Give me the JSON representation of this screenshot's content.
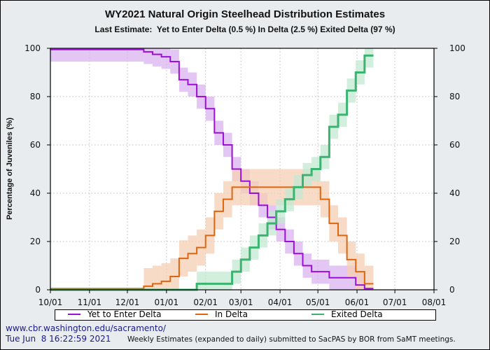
{
  "chart_data": {
    "type": "line",
    "title": "WY2021 Natural Origin Steelhead Distribution Estimates",
    "subtitle": "Last Estimate:  Yet to Enter Delta (0.5 %) In Delta (2.5 %) Exited Delta (97 %)",
    "ylabel": "Percentage of Juveniles (%)",
    "xlabel": "",
    "xlim": [
      "2020-10-01",
      "2021-08-01"
    ],
    "ylim": [
      0,
      100
    ],
    "x_ticks": [
      "10/01",
      "11/01",
      "12/01",
      "01/01",
      "02/01",
      "03/01",
      "04/01",
      "05/01",
      "06/01",
      "07/01",
      "08/01"
    ],
    "x_tick_dates": [
      "2020-10-01",
      "2020-11-01",
      "2020-12-01",
      "2021-01-01",
      "2021-02-01",
      "2021-03-01",
      "2021-04-01",
      "2021-05-01",
      "2021-06-01",
      "2021-07-01",
      "2021-08-01"
    ],
    "y_ticks": [
      "0",
      "20",
      "40",
      "60",
      "80",
      "100"
    ],
    "grid": true,
    "legend_position": "bottom",
    "end_date": "2021-06-14",
    "series": [
      {
        "name": "Yet to Enter Delta",
        "color": "#9b10d6",
        "band_color": "#d9b3f0",
        "band": 5,
        "steps": [
          [
            "2020-10-01",
            99.5
          ],
          [
            "2020-12-14",
            98.5
          ],
          [
            "2020-12-21",
            97.5
          ],
          [
            "2020-12-28",
            96.5
          ],
          [
            "2021-01-04",
            94.5
          ],
          [
            "2021-01-11",
            87
          ],
          [
            "2021-01-18",
            85
          ],
          [
            "2021-01-25",
            80
          ],
          [
            "2021-02-01",
            75
          ],
          [
            "2021-02-08",
            65
          ],
          [
            "2021-02-15",
            60
          ],
          [
            "2021-02-22",
            50
          ],
          [
            "2021-03-01",
            45
          ],
          [
            "2021-03-08",
            40
          ],
          [
            "2021-03-15",
            35
          ],
          [
            "2021-03-22",
            30
          ],
          [
            "2021-03-29",
            25
          ],
          [
            "2021-04-05",
            20
          ],
          [
            "2021-04-12",
            15
          ],
          [
            "2021-04-19",
            10
          ],
          [
            "2021-04-26",
            7.5
          ],
          [
            "2021-05-10",
            5
          ],
          [
            "2021-05-31",
            2
          ],
          [
            "2021-06-07",
            0.5
          ]
        ]
      },
      {
        "name": "In Delta",
        "color": "#e0650f",
        "band_color": "#f5cfb3",
        "band": 7.5,
        "steps": [
          [
            "2020-10-01",
            0.5
          ],
          [
            "2020-12-14",
            1.5
          ],
          [
            "2020-12-21",
            2.5
          ],
          [
            "2020-12-28",
            3.5
          ],
          [
            "2021-01-04",
            5.5
          ],
          [
            "2021-01-11",
            13
          ],
          [
            "2021-01-18",
            15
          ],
          [
            "2021-01-25",
            17.5
          ],
          [
            "2021-02-01",
            22.5
          ],
          [
            "2021-02-08",
            32.5
          ],
          [
            "2021-02-15",
            37.5
          ],
          [
            "2021-02-22",
            42.5
          ],
          [
            "2021-05-03",
            37.5
          ],
          [
            "2021-05-10",
            27.5
          ],
          [
            "2021-05-17",
            22.5
          ],
          [
            "2021-05-24",
            12.5
          ],
          [
            "2021-05-31",
            7.5
          ],
          [
            "2021-06-07",
            2.5
          ]
        ]
      },
      {
        "name": "Exited Delta",
        "color": "#3cb371",
        "band_color": "#c3e8d2",
        "band": 5,
        "steps": [
          [
            "2020-10-01",
            0
          ],
          [
            "2021-01-25",
            2.5
          ],
          [
            "2021-02-22",
            7.5
          ],
          [
            "2021-03-01",
            12.5
          ],
          [
            "2021-03-08",
            17.5
          ],
          [
            "2021-03-15",
            22.5
          ],
          [
            "2021-03-22",
            27.5
          ],
          [
            "2021-03-29",
            32.5
          ],
          [
            "2021-04-05",
            37.5
          ],
          [
            "2021-04-12",
            42.5
          ],
          [
            "2021-04-19",
            47.5
          ],
          [
            "2021-04-26",
            50
          ],
          [
            "2021-05-03",
            55
          ],
          [
            "2021-05-10",
            67.5
          ],
          [
            "2021-05-17",
            72.5
          ],
          [
            "2021-05-24",
            82.5
          ],
          [
            "2021-05-31",
            90
          ],
          [
            "2021-06-07",
            97
          ]
        ]
      }
    ]
  },
  "footer": {
    "link": "www.cbr.washington.edu/sacramento/",
    "timestamp": "Tue Jun  8 16:22:59 2021",
    "note": "Weekly Estimates (expanded to daily) submitted to SacPAS by BOR from SaMT meetings."
  }
}
